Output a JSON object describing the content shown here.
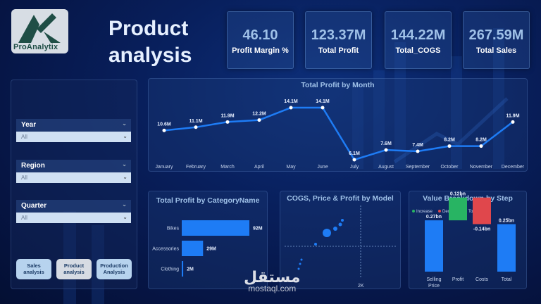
{
  "brand": {
    "name": "ProAnalytix"
  },
  "page": {
    "title_line1": "Product",
    "title_line2": "analysis"
  },
  "kpis": [
    {
      "value": "46.10",
      "label": "Profit Margin %"
    },
    {
      "value": "123.37M",
      "label": "Total Profit"
    },
    {
      "value": "144.22M",
      "label": "Total_COGS"
    },
    {
      "value": "267.59M",
      "label": "Total Sales"
    }
  ],
  "slicers": [
    {
      "label": "Year",
      "value": "All"
    },
    {
      "label": "Region",
      "value": "All"
    },
    {
      "label": "Quarter",
      "value": "All"
    }
  ],
  "nav_buttons": [
    {
      "label": "Sales analysis"
    },
    {
      "label": "Product analysis"
    },
    {
      "label": "Production Analysis"
    }
  ],
  "colors": {
    "accent": "#1e7cf5",
    "increase": "#28b463",
    "decrease": "#e0474c",
    "total": "#1e7cf5"
  },
  "watermark": {
    "arabic": "مستقل",
    "latin": "mostaql.com"
  },
  "chart_data": [
    {
      "type": "line",
      "title": "Total Profit by Month",
      "categories": [
        "January",
        "February",
        "March",
        "April",
        "May",
        "June",
        "July",
        "August",
        "September",
        "October",
        "November",
        "December"
      ],
      "values": [
        10.6,
        11.1,
        11.9,
        12.2,
        14.1,
        14.1,
        6.1,
        7.6,
        7.4,
        8.2,
        8.2,
        11.9
      ],
      "labels": [
        "10.6M",
        "11.1M",
        "11.9M",
        "12.2M",
        "14.1M",
        "14.1M",
        "6.1M",
        "7.6M",
        "7.4M",
        "8.2M",
        "8.2M",
        "11.9M"
      ],
      "unit": "M"
    },
    {
      "type": "bar",
      "orientation": "horizontal",
      "title": "Total Profit by CategoryName",
      "categories": [
        "Bikes",
        "Accessories",
        "Clothing"
      ],
      "values": [
        92,
        29,
        2
      ],
      "labels": [
        "92M",
        "29M",
        "2M"
      ]
    },
    {
      "type": "scatter",
      "title": "COGS, Price & Profit by Model",
      "xtick": "2K"
    },
    {
      "type": "waterfall",
      "title": "Value Breakdown by Step",
      "legend": [
        "Increase",
        "Decrease",
        "Total"
      ],
      "categories": [
        "Selling Price",
        "Profit",
        "Costs",
        "Total"
      ],
      "values": [
        0.27,
        0.12,
        -0.14,
        0.25
      ],
      "kinds": [
        "total",
        "increase",
        "decrease",
        "total"
      ],
      "labels": [
        "0.27bn",
        "0.12bn",
        "-0.14bn",
        "0.25bn"
      ]
    }
  ]
}
